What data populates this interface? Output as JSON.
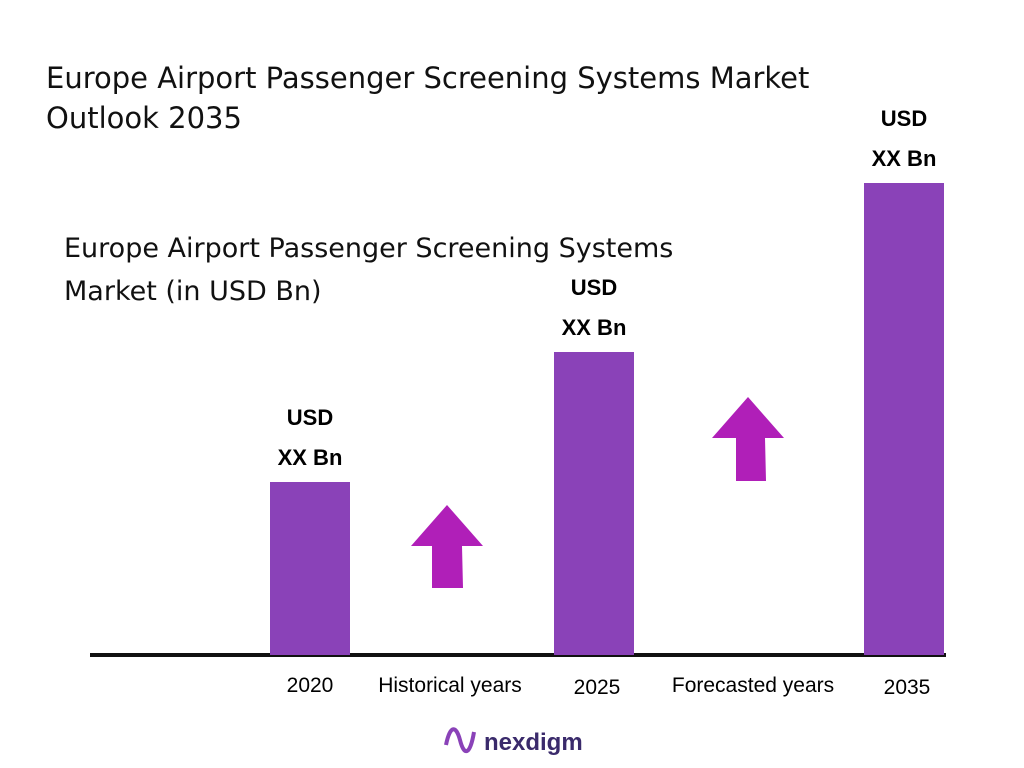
{
  "title": {
    "line1": "Europe Airport Passenger Screening Systems Market",
    "line2": "Outlook 2035"
  },
  "subtitle": {
    "line1": "Europe Airport Passenger Screening Systems",
    "line2": "Market (in USD Bn)"
  },
  "bars": [
    {
      "category": "2020",
      "label_line1": "USD",
      "label_line2": "XX Bn"
    },
    {
      "category": "2025",
      "label_line1": "USD",
      "label_line2": "XX Bn"
    },
    {
      "category": "2035",
      "label_line1": "USD",
      "label_line2": "XX Bn"
    }
  ],
  "periods": [
    "Historical years",
    "Forecasted years"
  ],
  "logo": "nexdigm"
}
